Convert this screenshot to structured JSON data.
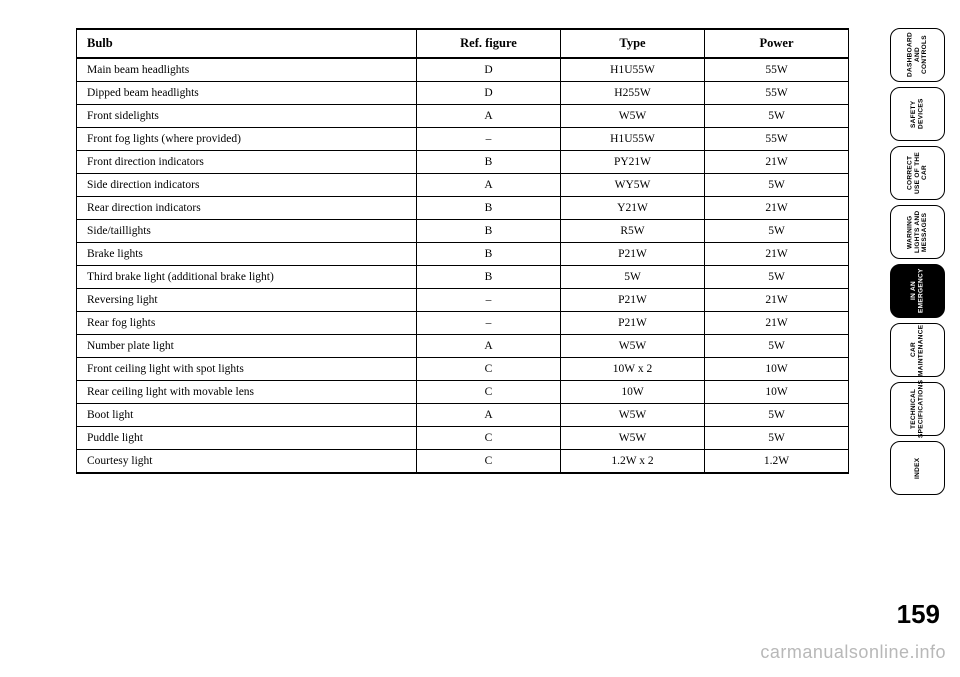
{
  "table": {
    "headers": [
      "Bulb",
      "Ref. figure",
      "Type",
      "Power"
    ],
    "rows": [
      [
        "Main beam headlights",
        "D",
        "H1U55W",
        "55W"
      ],
      [
        "Dipped beam headlights",
        "D",
        "H255W",
        "55W"
      ],
      [
        "Front sidelights",
        "A",
        "W5W",
        "5W"
      ],
      [
        "Front fog lights (where provided)",
        "–",
        "H1U55W",
        "55W"
      ],
      [
        "Front direction indicators",
        "B",
        "PY21W",
        "21W"
      ],
      [
        "Side direction indicators",
        "A",
        "WY5W",
        "5W"
      ],
      [
        "Rear direction indicators",
        "B",
        "Y21W",
        "21W"
      ],
      [
        "Side/taillights",
        "B",
        "R5W",
        "5W"
      ],
      [
        "Brake lights",
        "B",
        "P21W",
        "21W"
      ],
      [
        "Third brake light (additional brake light)",
        "B",
        "5W",
        "5W"
      ],
      [
        "Reversing light",
        "–",
        "P21W",
        "21W"
      ],
      [
        "Rear fog lights",
        "–",
        "P21W",
        "21W"
      ],
      [
        "Number plate light",
        "A",
        "W5W",
        "5W"
      ],
      [
        "Front ceiling light with spot lights",
        "C",
        "10W x 2",
        "10W"
      ],
      [
        "Rear ceiling light with movable lens",
        "C",
        "10W",
        "10W"
      ],
      [
        "Boot light",
        "A",
        "W5W",
        "5W"
      ],
      [
        "Puddle light",
        "C",
        "W5W",
        "5W"
      ],
      [
        "Courtesy light",
        "C",
        "1.2W x 2",
        "1.2W"
      ]
    ]
  },
  "tabs": [
    {
      "label": "DASHBOARD\nAND CONTROLS",
      "active": false
    },
    {
      "label": "SAFETY\nDEVICES",
      "active": false
    },
    {
      "label": "CORRECT USE\nOF THE CAR",
      "active": false
    },
    {
      "label": "WARNING\nLIGHTS AND\nMESSAGES",
      "active": false
    },
    {
      "label": "IN AN\nEMERGENCY",
      "active": true
    },
    {
      "label": "CAR\nMAINTENANCE",
      "active": false
    },
    {
      "label": "TECHNICAL\nSPECIFICATIONS",
      "active": false
    },
    {
      "label": "INDEX",
      "active": false
    }
  ],
  "page_number": "159",
  "watermark": "carmanualsonline.info"
}
